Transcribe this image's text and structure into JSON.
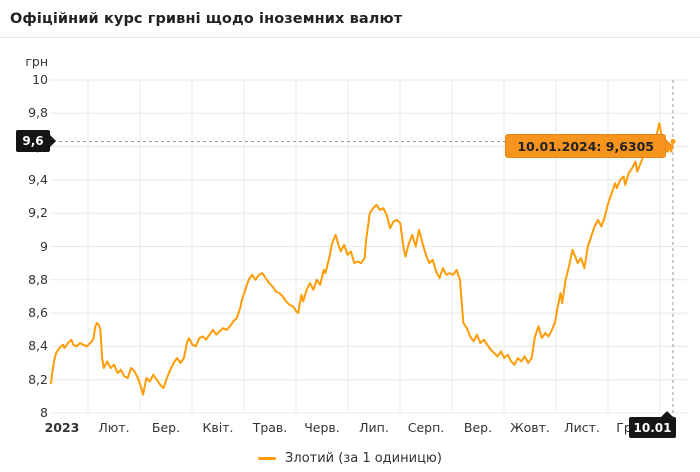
{
  "header": {
    "title": "Офіційний курс гривні щодо іноземних валют"
  },
  "axis": {
    "unit_label": "грн",
    "y_ticks": [
      {
        "label": "10",
        "value": 10
      },
      {
        "label": "9,8",
        "value": 9.8
      },
      {
        "label": "9,6",
        "value": 9.6
      },
      {
        "label": "9,4",
        "value": 9.4
      },
      {
        "label": "9,2",
        "value": 9.2
      },
      {
        "label": "9",
        "value": 9
      },
      {
        "label": "8,8",
        "value": 8.8
      },
      {
        "label": "8,6",
        "value": 8.6
      },
      {
        "label": "8,4",
        "value": 8.4
      },
      {
        "label": "8,2",
        "value": 8.2
      },
      {
        "label": "8",
        "value": 8
      }
    ],
    "x_ticks": [
      {
        "label": "2023",
        "month": 0,
        "bold": true
      },
      {
        "label": "Лют.",
        "month": 1
      },
      {
        "label": "Бер.",
        "month": 2
      },
      {
        "label": "Квіт.",
        "month": 3
      },
      {
        "label": "Трав.",
        "month": 4
      },
      {
        "label": "Черв.",
        "month": 5
      },
      {
        "label": "Лип.",
        "month": 6
      },
      {
        "label": "Серп.",
        "month": 7
      },
      {
        "label": "Вер.",
        "month": 8
      },
      {
        "label": "Жовт.",
        "month": 9
      },
      {
        "label": "Лист.",
        "month": 10
      },
      {
        "label": "Груд.",
        "month": 11
      }
    ]
  },
  "markers": {
    "y_badge_label": "9,6",
    "x_badge_label": "10.01"
  },
  "tooltip": {
    "text": "10.01.2024: 9,6305"
  },
  "legend": {
    "items": [
      {
        "label": "Злотий (за 1 одиницю)"
      }
    ]
  },
  "colors": {
    "line": "#ff9c07",
    "tooltip_bg": "#f7941e",
    "badge_bg": "#151515",
    "badge_text": "#ffffff",
    "grid": "#e8e8e8",
    "crosshair": "#999999",
    "text": "#333333"
  },
  "chart_data": {
    "type": "line",
    "title": "Офіційний курс гривні щодо іноземних валют",
    "ylabel": "грн",
    "ylim": [
      8,
      10
    ],
    "y_tick_step": 0.2,
    "x_range": [
      "10.01.2023",
      "10.01.2024"
    ],
    "grid": true,
    "legend_position": "bottom",
    "highlight": {
      "date": "10.01.2024",
      "value": 9.6305,
      "y_axis_flag": "9,6",
      "x_axis_flag": "10.01"
    },
    "series": [
      {
        "name": "Злотий (за 1 одиницю)",
        "points": [
          [
            0,
            8.18
          ],
          [
            1,
            8.26
          ],
          [
            2,
            8.32
          ],
          [
            3,
            8.36
          ],
          [
            5,
            8.39
          ],
          [
            7,
            8.41
          ],
          [
            8,
            8.39
          ],
          [
            10,
            8.42
          ],
          [
            12,
            8.44
          ],
          [
            13,
            8.41
          ],
          [
            15,
            8.4
          ],
          [
            17,
            8.42
          ],
          [
            19,
            8.41
          ],
          [
            21,
            8.4
          ],
          [
            22,
            8.41
          ],
          [
            24,
            8.43
          ],
          [
            25,
            8.45
          ],
          [
            26,
            8.52
          ],
          [
            27,
            8.54
          ],
          [
            28,
            8.53
          ],
          [
            29,
            8.5
          ],
          [
            30,
            8.33
          ],
          [
            31,
            8.27
          ],
          [
            33,
            8.31
          ],
          [
            35,
            8.27
          ],
          [
            37,
            8.29
          ],
          [
            39,
            8.24
          ],
          [
            41,
            8.26
          ],
          [
            43,
            8.22
          ],
          [
            45,
            8.21
          ],
          [
            47,
            8.27
          ],
          [
            49,
            8.25
          ],
          [
            51,
            8.21
          ],
          [
            53,
            8.15
          ],
          [
            54,
            8.11
          ],
          [
            56,
            8.21
          ],
          [
            58,
            8.19
          ],
          [
            60,
            8.23
          ],
          [
            62,
            8.2
          ],
          [
            64,
            8.17
          ],
          [
            66,
            8.15
          ],
          [
            68,
            8.21
          ],
          [
            70,
            8.26
          ],
          [
            72,
            8.3
          ],
          [
            74,
            8.33
          ],
          [
            76,
            8.3
          ],
          [
            78,
            8.33
          ],
          [
            80,
            8.43
          ],
          [
            81,
            8.45
          ],
          [
            83,
            8.41
          ],
          [
            85,
            8.4
          ],
          [
            87,
            8.45
          ],
          [
            89,
            8.46
          ],
          [
            91,
            8.44
          ],
          [
            93,
            8.47
          ],
          [
            95,
            8.5
          ],
          [
            97,
            8.47
          ],
          [
            99,
            8.49
          ],
          [
            101,
            8.51
          ],
          [
            103,
            8.5
          ],
          [
            105,
            8.52
          ],
          [
            107,
            8.55
          ],
          [
            109,
            8.57
          ],
          [
            111,
            8.63
          ],
          [
            112,
            8.68
          ],
          [
            114,
            8.74
          ],
          [
            116,
            8.8
          ],
          [
            118,
            8.83
          ],
          [
            120,
            8.8
          ],
          [
            122,
            8.83
          ],
          [
            124,
            8.84
          ],
          [
            126,
            8.81
          ],
          [
            128,
            8.78
          ],
          [
            130,
            8.76
          ],
          [
            132,
            8.73
          ],
          [
            134,
            8.72
          ],
          [
            136,
            8.7
          ],
          [
            138,
            8.67
          ],
          [
            140,
            8.65
          ],
          [
            142,
            8.64
          ],
          [
            144,
            8.61
          ],
          [
            145,
            8.6
          ],
          [
            147,
            8.71
          ],
          [
            148,
            8.67
          ],
          [
            150,
            8.74
          ],
          [
            152,
            8.78
          ],
          [
            154,
            8.74
          ],
          [
            156,
            8.8
          ],
          [
            158,
            8.77
          ],
          [
            160,
            8.86
          ],
          [
            161,
            8.84
          ],
          [
            163,
            8.92
          ],
          [
            165,
            9.02
          ],
          [
            167,
            9.07
          ],
          [
            169,
            9.0
          ],
          [
            170,
            8.97
          ],
          [
            172,
            9.01
          ],
          [
            174,
            8.95
          ],
          [
            176,
            8.97
          ],
          [
            178,
            8.9
          ],
          [
            180,
            8.91
          ],
          [
            182,
            8.9
          ],
          [
            184,
            8.93
          ],
          [
            185,
            9.05
          ],
          [
            186,
            9.12
          ],
          [
            187,
            9.2
          ],
          [
            189,
            9.23
          ],
          [
            191,
            9.25
          ],
          [
            193,
            9.22
          ],
          [
            195,
            9.23
          ],
          [
            197,
            9.19
          ],
          [
            199,
            9.11
          ],
          [
            201,
            9.15
          ],
          [
            203,
            9.16
          ],
          [
            205,
            9.14
          ],
          [
            207,
            8.98
          ],
          [
            208,
            8.94
          ],
          [
            210,
            9.02
          ],
          [
            212,
            9.07
          ],
          [
            214,
            9.0
          ],
          [
            216,
            9.1
          ],
          [
            218,
            9.02
          ],
          [
            220,
            8.95
          ],
          [
            222,
            8.9
          ],
          [
            224,
            8.92
          ],
          [
            226,
            8.85
          ],
          [
            228,
            8.81
          ],
          [
            230,
            8.87
          ],
          [
            232,
            8.83
          ],
          [
            234,
            8.84
          ],
          [
            236,
            8.83
          ],
          [
            238,
            8.86
          ],
          [
            240,
            8.8
          ],
          [
            241,
            8.66
          ],
          [
            242,
            8.54
          ],
          [
            244,
            8.51
          ],
          [
            246,
            8.46
          ],
          [
            248,
            8.43
          ],
          [
            250,
            8.47
          ],
          [
            252,
            8.42
          ],
          [
            254,
            8.44
          ],
          [
            256,
            8.41
          ],
          [
            258,
            8.38
          ],
          [
            260,
            8.36
          ],
          [
            262,
            8.34
          ],
          [
            264,
            8.37
          ],
          [
            266,
            8.33
          ],
          [
            268,
            8.35
          ],
          [
            270,
            8.31
          ],
          [
            272,
            8.29
          ],
          [
            274,
            8.33
          ],
          [
            276,
            8.31
          ],
          [
            278,
            8.34
          ],
          [
            280,
            8.3
          ],
          [
            282,
            8.33
          ],
          [
            284,
            8.46
          ],
          [
            286,
            8.52
          ],
          [
            288,
            8.45
          ],
          [
            290,
            8.48
          ],
          [
            292,
            8.46
          ],
          [
            294,
            8.5
          ],
          [
            296,
            8.55
          ],
          [
            297,
            8.62
          ],
          [
            299,
            8.72
          ],
          [
            300,
            8.66
          ],
          [
            302,
            8.8
          ],
          [
            304,
            8.88
          ],
          [
            306,
            8.98
          ],
          [
            308,
            8.93
          ],
          [
            309,
            8.9
          ],
          [
            311,
            8.93
          ],
          [
            313,
            8.87
          ],
          [
            315,
            9.0
          ],
          [
            317,
            9.06
          ],
          [
            319,
            9.12
          ],
          [
            321,
            9.16
          ],
          [
            323,
            9.12
          ],
          [
            325,
            9.18
          ],
          [
            327,
            9.26
          ],
          [
            329,
            9.32
          ],
          [
            331,
            9.38
          ],
          [
            332,
            9.35
          ],
          [
            334,
            9.4
          ],
          [
            336,
            9.42
          ],
          [
            337,
            9.37
          ],
          [
            339,
            9.44
          ],
          [
            341,
            9.47
          ],
          [
            343,
            9.51
          ],
          [
            344,
            9.45
          ],
          [
            346,
            9.5
          ],
          [
            348,
            9.55
          ],
          [
            350,
            9.6
          ],
          [
            351,
            9.62
          ],
          [
            353,
            9.55
          ],
          [
            354,
            9.58
          ],
          [
            356,
            9.7
          ],
          [
            357,
            9.74
          ],
          [
            358,
            9.68
          ],
          [
            359,
            9.58
          ],
          [
            360,
            9.56
          ],
          [
            361,
            9.61
          ],
          [
            362,
            9.57
          ],
          [
            363,
            9.6
          ],
          [
            364,
            9.57
          ],
          [
            365,
            9.6305
          ]
        ]
      }
    ]
  }
}
